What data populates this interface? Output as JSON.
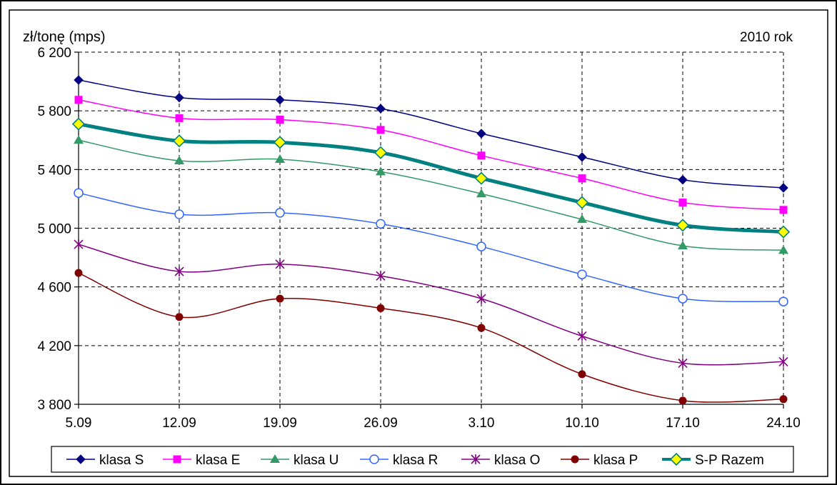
{
  "chart_data": {
    "type": "line",
    "ylabel": "zł/tonę (mps)",
    "annotation": "2010 rok",
    "categories": [
      "5.09",
      "12.09",
      "19.09",
      "26.09",
      "3.10",
      "10.10",
      "17.10",
      "24.10"
    ],
    "ylim": [
      3800,
      6200
    ],
    "yticks": [
      3800,
      4200,
      4600,
      5000,
      5400,
      5800,
      6200
    ],
    "ytick_labels": [
      "3 800",
      "4 200",
      "4 600",
      "5 000",
      "5 400",
      "5 800",
      "6 200"
    ],
    "grid": true,
    "legend_position": "bottom",
    "series": [
      {
        "name": "klasa S",
        "color": "#000080",
        "marker": "diamond",
        "width": 1.5,
        "values": [
          6010,
          5890,
          5875,
          5815,
          5645,
          5485,
          5330,
          5275
        ]
      },
      {
        "name": "klasa E",
        "color": "#ff00ff",
        "marker": "square",
        "width": 1.5,
        "values": [
          5875,
          5750,
          5740,
          5670,
          5495,
          5340,
          5175,
          5125
        ]
      },
      {
        "name": "klasa U",
        "color": "#339966",
        "marker": "triangle",
        "width": 1.5,
        "values": [
          5600,
          5460,
          5470,
          5385,
          5235,
          5060,
          4880,
          4850
        ]
      },
      {
        "name": "klasa R",
        "color": "#3366ff",
        "marker": "circle-open",
        "width": 1.5,
        "values": [
          5240,
          5095,
          5105,
          5030,
          4875,
          4685,
          4520,
          4500
        ]
      },
      {
        "name": "klasa O",
        "color": "#800080",
        "marker": "star",
        "width": 1.5,
        "values": [
          4890,
          4705,
          4755,
          4675,
          4520,
          4265,
          4080,
          4090
        ]
      },
      {
        "name": "klasa P",
        "color": "#800000",
        "marker": "circle-filled",
        "width": 1.5,
        "values": [
          4695,
          4395,
          4520,
          4455,
          4320,
          4005,
          3825,
          3835
        ]
      },
      {
        "name": "S-P Razem",
        "color": "#008080",
        "marker": "diamond-yellow",
        "width": 5,
        "values": [
          5710,
          5595,
          5585,
          5515,
          5340,
          5175,
          5020,
          4975
        ]
      }
    ]
  }
}
